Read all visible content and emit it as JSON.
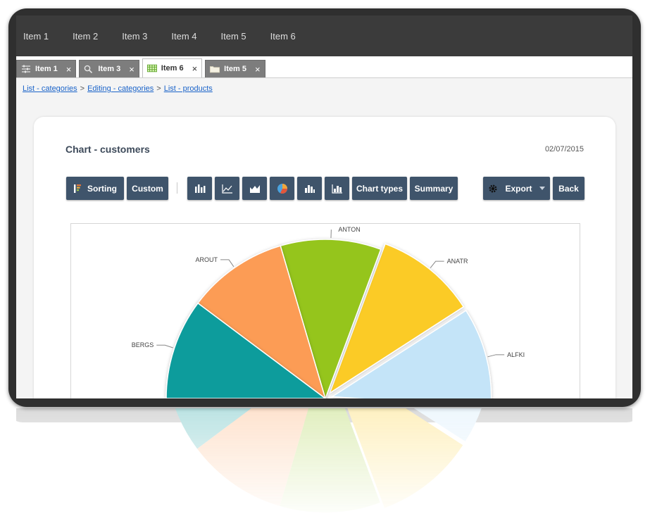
{
  "topmenu": {
    "items": [
      "Item 1",
      "Item 2",
      "Item 3",
      "Item 4",
      "Item 5",
      "Item 6"
    ]
  },
  "tabs": [
    {
      "label": "Item 1",
      "icon": "sliders-icon",
      "close": "×",
      "active": false
    },
    {
      "label": "Item 3",
      "icon": "search-icon",
      "close": "×",
      "active": false
    },
    {
      "label": "Item 6",
      "icon": "grid-icon",
      "close": "×",
      "active": true
    },
    {
      "label": "Item 5",
      "icon": "folder-icon",
      "close": "×",
      "active": false
    }
  ],
  "breadcrumb": {
    "items": [
      "List - categories",
      "Editing - categories",
      "List - products"
    ],
    "separator": ">"
  },
  "card": {
    "title": "Chart - customers",
    "date": "02/07/2015"
  },
  "toolbar": {
    "sorting_label": "Sorting",
    "custom_label": "Custom",
    "chart_types_label": "Chart types",
    "summary_label": "Summary",
    "export_label": "Export",
    "back_label": "Back",
    "chart_icons": [
      "bar-chart-icon",
      "line-chart-icon",
      "area-chart-icon",
      "pie-chart-icon",
      "column-chart-icon",
      "stacked-bar-chart-icon"
    ]
  },
  "colors": {
    "button_bg": "#3f546b",
    "link": "#1a63c9",
    "frame": "#2f2f2f"
  },
  "chart_data": {
    "type": "pie",
    "categories": [
      "ALFKI",
      "ANATR",
      "ANTON",
      "AROUT",
      "BERGS"
    ],
    "values": [
      1,
      1,
      1,
      1,
      1
    ],
    "colors": [
      "#c4e4f8",
      "#fbcb25",
      "#95c51d",
      "#fc9c55",
      "#109c9c"
    ],
    "exploded": [
      "ALFKI",
      "ANATR"
    ],
    "title": ""
  }
}
